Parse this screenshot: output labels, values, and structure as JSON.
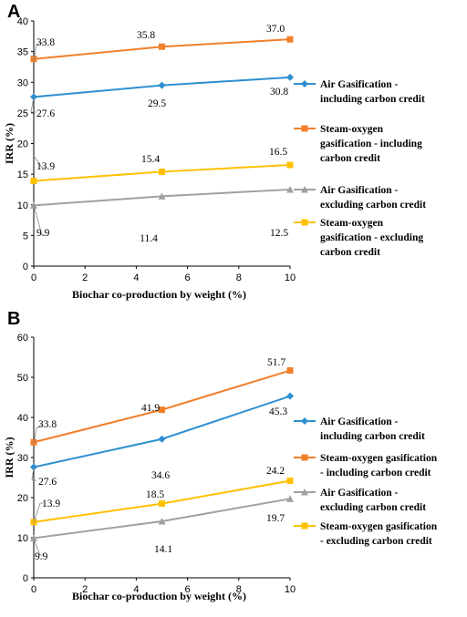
{
  "chart_data": [
    {
      "type": "line",
      "panel_label": "A",
      "xlabel": "Biochar co-production by weight (%)",
      "ylabel": "IRR (%)",
      "xlim": [
        0,
        10
      ],
      "ylim": [
        0,
        40
      ],
      "xticks": [
        "0",
        "2",
        "4",
        "6",
        "8",
        "10"
      ],
      "yticks": [
        "0",
        "5",
        "10",
        "15",
        "20",
        "25",
        "30",
        "35",
        "40"
      ],
      "x": [
        0,
        5,
        10
      ],
      "grid": false,
      "legend_position": "right",
      "series": [
        {
          "name": "Air Gasification - including carbon credit",
          "legend_lines": [
            "Air Gasification -",
            "including carbon credit"
          ],
          "values": [
            27.6,
            29.5,
            30.8
          ],
          "labels": [
            "27.6",
            "29.5",
            "30.8"
          ],
          "color": "#2E8FD0",
          "marker": "diamond"
        },
        {
          "name": "Steam-oxygen gasification - including carbon credit",
          "legend_lines": [
            "Steam-oxygen",
            "gasification - including",
            "carbon credit"
          ],
          "values": [
            33.8,
            35.8,
            37.0
          ],
          "labels": [
            "33.8",
            "35.8",
            "37.0"
          ],
          "color": "#F07F2A",
          "marker": "square"
        },
        {
          "name": "Air Gasification - excluding carbon credit",
          "legend_lines": [
            "Air Gasification -",
            "excluding carbon credit"
          ],
          "values": [
            9.9,
            11.4,
            12.5
          ],
          "labels": [
            "9.9",
            "11.4",
            "12.5"
          ],
          "color": "#A0A0A0",
          "marker": "triangle"
        },
        {
          "name": "Steam-oxygen gasification - excluding carbon credit",
          "legend_lines": [
            "Steam-oxygen",
            "gasification - excluding",
            "carbon credit"
          ],
          "values": [
            13.9,
            15.4,
            16.5
          ],
          "labels": [
            "13.9",
            "15.4",
            "16.5"
          ],
          "color": "#FFC000",
          "marker": "square"
        }
      ]
    },
    {
      "type": "line",
      "panel_label": "B",
      "xlabel": "Biochar co-production by weight (%)",
      "ylabel": "IRR (%)",
      "xlim": [
        0,
        10
      ],
      "ylim": [
        0,
        60
      ],
      "xticks": [
        "0",
        "2",
        "4",
        "6",
        "8",
        "10"
      ],
      "yticks": [
        "0",
        "10",
        "20",
        "30",
        "40",
        "50",
        "60"
      ],
      "x": [
        0,
        5,
        10
      ],
      "grid": false,
      "legend_position": "right",
      "series": [
        {
          "name": "Air Gasification - including carbon credit",
          "legend_lines": [
            "Air Gasification -",
            "including carbon credit"
          ],
          "values": [
            27.6,
            34.6,
            45.3
          ],
          "labels": [
            "27.6",
            "34.6",
            "45.3"
          ],
          "color": "#2E8FD0",
          "marker": "diamond"
        },
        {
          "name": "Steam-oxygen gasification - including carbon credit",
          "legend_lines": [
            "Steam-oxygen gasification",
            "- including carbon credit"
          ],
          "values": [
            33.8,
            41.9,
            51.7
          ],
          "labels": [
            "33.8",
            "41.9",
            "51.7"
          ],
          "color": "#F07F2A",
          "marker": "square"
        },
        {
          "name": "Air Gasification - excluding carbon credit",
          "legend_lines": [
            "Air Gasification -",
            "excluding carbon credit"
          ],
          "values": [
            9.9,
            14.1,
            19.7
          ],
          "labels": [
            "9.9",
            "14.1",
            "19.7"
          ],
          "color": "#A0A0A0",
          "marker": "triangle"
        },
        {
          "name": "Steam-oxygen gasification - excluding carbon credit",
          "legend_lines": [
            "Steam-oxygen gasification",
            "- excluding carbon credit"
          ],
          "values": [
            13.9,
            18.5,
            24.2
          ],
          "labels": [
            "13.9",
            "18.5",
            "24.2"
          ],
          "color": "#FFC000",
          "marker": "square"
        }
      ]
    }
  ]
}
